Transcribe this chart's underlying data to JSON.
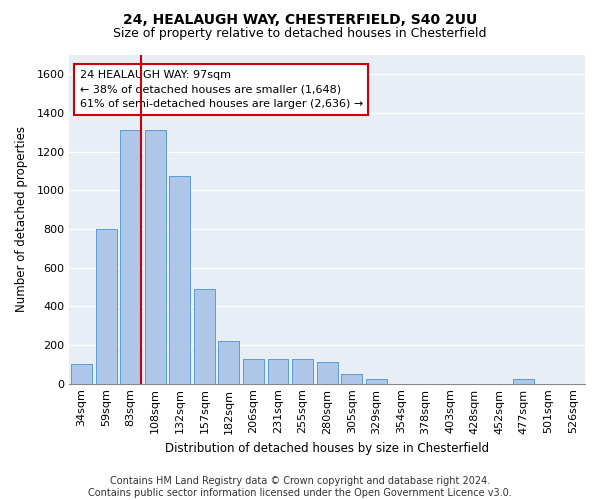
{
  "title1": "24, HEALAUGH WAY, CHESTERFIELD, S40 2UU",
  "title2": "Size of property relative to detached houses in Chesterfield",
  "xlabel": "Distribution of detached houses by size in Chesterfield",
  "ylabel": "Number of detached properties",
  "bins": [
    "34sqm",
    "59sqm",
    "83sqm",
    "108sqm",
    "132sqm",
    "157sqm",
    "182sqm",
    "206sqm",
    "231sqm",
    "255sqm",
    "280sqm",
    "305sqm",
    "329sqm",
    "354sqm",
    "378sqm",
    "403sqm",
    "428sqm",
    "452sqm",
    "477sqm",
    "501sqm",
    "526sqm"
  ],
  "values": [
    100,
    800,
    1310,
    1310,
    1075,
    490,
    220,
    130,
    130,
    130,
    110,
    50,
    25,
    0,
    0,
    0,
    0,
    0,
    25,
    0,
    0
  ],
  "bar_color": "#aec6e8",
  "bar_edge_color": "#5b9bd5",
  "vline_color": "#cc0000",
  "vline_x": 3.56,
  "annotation_text": "24 HEALAUGH WAY: 97sqm\n← 38% of detached houses are smaller (1,648)\n61% of semi-detached houses are larger (2,636) →",
  "annotation_box_color": "#ffffff",
  "annotation_box_edge": "#cc0000",
  "ylim": [
    0,
    1700
  ],
  "yticks": [
    0,
    200,
    400,
    600,
    800,
    1000,
    1200,
    1400,
    1600
  ],
  "bg_color": "#e8eef5",
  "footer": "Contains HM Land Registry data © Crown copyright and database right 2024.\nContains public sector information licensed under the Open Government Licence v3.0.",
  "title1_fontsize": 10,
  "title2_fontsize": 9,
  "xlabel_fontsize": 8.5,
  "ylabel_fontsize": 8.5,
  "tick_fontsize": 8,
  "footer_fontsize": 7,
  "annot_fontsize": 8
}
